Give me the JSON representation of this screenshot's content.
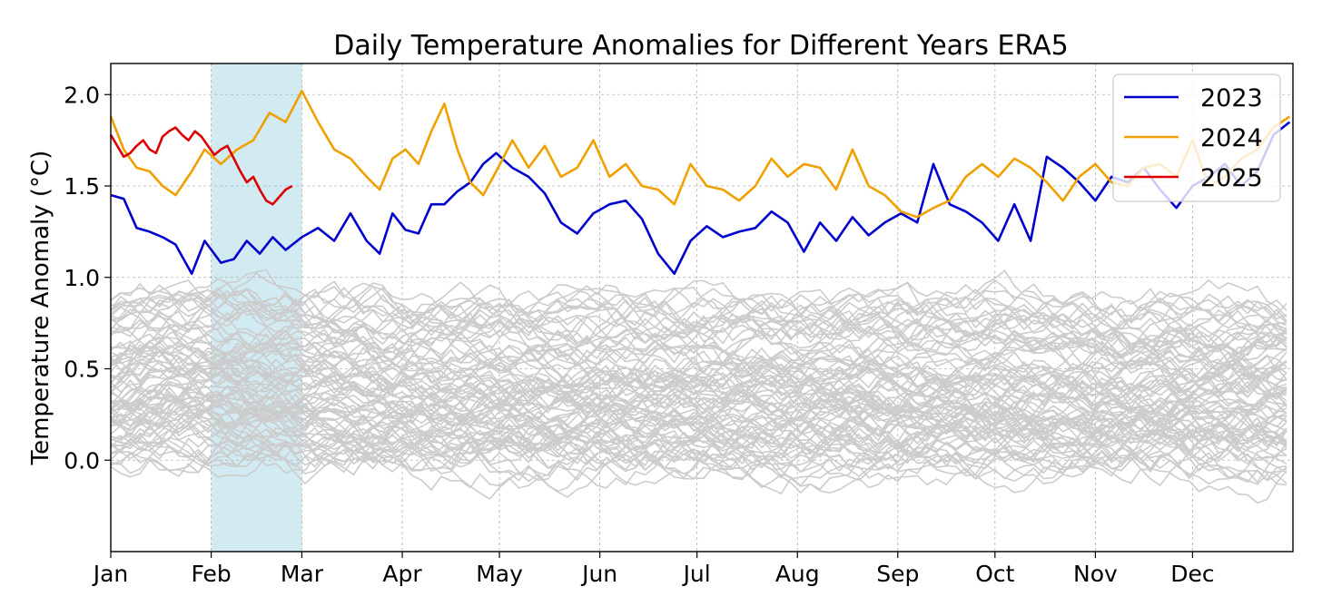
{
  "chart_data": {
    "type": "line",
    "title": "Daily Temperature Anomalies for Different Years ERA5",
    "xlabel": "",
    "ylabel": "Temperature Anomaly (°C)",
    "x_tick_labels": [
      "Jan",
      "Feb",
      "Mar",
      "Apr",
      "May",
      "Jun",
      "Jul",
      "Aug",
      "Sep",
      "Oct",
      "Nov",
      "Dec"
    ],
    "y_ticks": [
      0.0,
      0.5,
      1.0,
      1.5,
      2.0
    ],
    "y_tick_labels": [
      "0.0",
      "0.5",
      "1.0",
      "1.5",
      "2.0"
    ],
    "ylim": [
      -0.5,
      2.17
    ],
    "xlim": [
      1,
      366
    ],
    "grid": true,
    "legend_position": "top-right",
    "highlight_band": {
      "x_start_day": 32,
      "x_end_day": 60,
      "color": "#add8e6"
    },
    "background_series": {
      "description": "earlier years",
      "count": 85,
      "color": "#cccccc",
      "center": 0.4,
      "spread": 0.32
    },
    "colors": {
      "2023": "#0000cd",
      "2024": "#f0a000",
      "2025": "#dd0000",
      "background": "#cccccc"
    },
    "series": [
      {
        "name": "2023",
        "color": "#0000cd",
        "points": [
          [
            1,
            1.45
          ],
          [
            5,
            1.43
          ],
          [
            9,
            1.27
          ],
          [
            13,
            1.25
          ],
          [
            17,
            1.22
          ],
          [
            21,
            1.18
          ],
          [
            26,
            1.02
          ],
          [
            30,
            1.2
          ],
          [
            35,
            1.08
          ],
          [
            39,
            1.1
          ],
          [
            43,
            1.2
          ],
          [
            47,
            1.13
          ],
          [
            51,
            1.22
          ],
          [
            55,
            1.15
          ],
          [
            60,
            1.22
          ],
          [
            65,
            1.27
          ],
          [
            70,
            1.2
          ],
          [
            75,
            1.35
          ],
          [
            80,
            1.2
          ],
          [
            84,
            1.13
          ],
          [
            88,
            1.35
          ],
          [
            92,
            1.26
          ],
          [
            96,
            1.24
          ],
          [
            100,
            1.4
          ],
          [
            104,
            1.4
          ],
          [
            108,
            1.47
          ],
          [
            112,
            1.52
          ],
          [
            116,
            1.62
          ],
          [
            120,
            1.68
          ],
          [
            125,
            1.6
          ],
          [
            130,
            1.55
          ],
          [
            135,
            1.46
          ],
          [
            140,
            1.3
          ],
          [
            145,
            1.24
          ],
          [
            150,
            1.35
          ],
          [
            155,
            1.4
          ],
          [
            160,
            1.42
          ],
          [
            165,
            1.32
          ],
          [
            170,
            1.13
          ],
          [
            175,
            1.02
          ],
          [
            180,
            1.2
          ],
          [
            185,
            1.28
          ],
          [
            190,
            1.22
          ],
          [
            195,
            1.25
          ],
          [
            200,
            1.27
          ],
          [
            205,
            1.36
          ],
          [
            210,
            1.3
          ],
          [
            215,
            1.14
          ],
          [
            220,
            1.3
          ],
          [
            225,
            1.2
          ],
          [
            230,
            1.33
          ],
          [
            235,
            1.23
          ],
          [
            240,
            1.3
          ],
          [
            245,
            1.35
          ],
          [
            250,
            1.3
          ],
          [
            255,
            1.62
          ],
          [
            260,
            1.4
          ],
          [
            265,
            1.36
          ],
          [
            270,
            1.3
          ],
          [
            275,
            1.2
          ],
          [
            280,
            1.4
          ],
          [
            285,
            1.2
          ],
          [
            290,
            1.66
          ],
          [
            295,
            1.6
          ],
          [
            300,
            1.52
          ],
          [
            305,
            1.42
          ],
          [
            310,
            1.55
          ],
          [
            315,
            1.52
          ],
          [
            320,
            1.6
          ],
          [
            325,
            1.48
          ],
          [
            330,
            1.38
          ],
          [
            335,
            1.5
          ],
          [
            340,
            1.55
          ],
          [
            345,
            1.62
          ],
          [
            350,
            1.5
          ],
          [
            355,
            1.58
          ],
          [
            360,
            1.78
          ],
          [
            365,
            1.85
          ]
        ]
      },
      {
        "name": "2024",
        "color": "#f0a000",
        "points": [
          [
            1,
            1.88
          ],
          [
            5,
            1.7
          ],
          [
            9,
            1.6
          ],
          [
            13,
            1.58
          ],
          [
            17,
            1.5
          ],
          [
            21,
            1.45
          ],
          [
            26,
            1.58
          ],
          [
            30,
            1.7
          ],
          [
            35,
            1.62
          ],
          [
            40,
            1.7
          ],
          [
            45,
            1.75
          ],
          [
            50,
            1.9
          ],
          [
            55,
            1.85
          ],
          [
            60,
            2.02
          ],
          [
            65,
            1.85
          ],
          [
            70,
            1.7
          ],
          [
            75,
            1.65
          ],
          [
            80,
            1.55
          ],
          [
            84,
            1.48
          ],
          [
            88,
            1.65
          ],
          [
            92,
            1.7
          ],
          [
            96,
            1.62
          ],
          [
            100,
            1.8
          ],
          [
            104,
            1.95
          ],
          [
            108,
            1.7
          ],
          [
            112,
            1.52
          ],
          [
            116,
            1.45
          ],
          [
            120,
            1.58
          ],
          [
            125,
            1.75
          ],
          [
            130,
            1.6
          ],
          [
            135,
            1.72
          ],
          [
            140,
            1.55
          ],
          [
            145,
            1.6
          ],
          [
            150,
            1.75
          ],
          [
            155,
            1.55
          ],
          [
            160,
            1.62
          ],
          [
            165,
            1.5
          ],
          [
            170,
            1.48
          ],
          [
            175,
            1.4
          ],
          [
            180,
            1.62
          ],
          [
            185,
            1.5
          ],
          [
            190,
            1.48
          ],
          [
            195,
            1.42
          ],
          [
            200,
            1.5
          ],
          [
            205,
            1.65
          ],
          [
            210,
            1.55
          ],
          [
            215,
            1.62
          ],
          [
            220,
            1.6
          ],
          [
            225,
            1.48
          ],
          [
            230,
            1.7
          ],
          [
            235,
            1.5
          ],
          [
            240,
            1.45
          ],
          [
            245,
            1.36
          ],
          [
            250,
            1.33
          ],
          [
            255,
            1.38
          ],
          [
            260,
            1.42
          ],
          [
            265,
            1.55
          ],
          [
            270,
            1.62
          ],
          [
            275,
            1.55
          ],
          [
            280,
            1.65
          ],
          [
            285,
            1.6
          ],
          [
            290,
            1.52
          ],
          [
            295,
            1.42
          ],
          [
            300,
            1.55
          ],
          [
            305,
            1.62
          ],
          [
            310,
            1.52
          ],
          [
            315,
            1.5
          ],
          [
            320,
            1.6
          ],
          [
            325,
            1.62
          ],
          [
            330,
            1.55
          ],
          [
            335,
            1.75
          ],
          [
            340,
            1.5
          ],
          [
            345,
            1.55
          ],
          [
            350,
            1.65
          ],
          [
            355,
            1.7
          ],
          [
            360,
            1.82
          ],
          [
            365,
            1.88
          ]
        ]
      },
      {
        "name": "2025",
        "color": "#dd0000",
        "points": [
          [
            1,
            1.78
          ],
          [
            3,
            1.72
          ],
          [
            5,
            1.66
          ],
          [
            7,
            1.68
          ],
          [
            9,
            1.72
          ],
          [
            11,
            1.75
          ],
          [
            13,
            1.7
          ],
          [
            15,
            1.68
          ],
          [
            17,
            1.77
          ],
          [
            19,
            1.8
          ],
          [
            21,
            1.82
          ],
          [
            23,
            1.78
          ],
          [
            25,
            1.75
          ],
          [
            27,
            1.8
          ],
          [
            29,
            1.77
          ],
          [
            31,
            1.72
          ],
          [
            33,
            1.67
          ],
          [
            35,
            1.7
          ],
          [
            37,
            1.72
          ],
          [
            39,
            1.65
          ],
          [
            41,
            1.58
          ],
          [
            43,
            1.52
          ],
          [
            45,
            1.55
          ],
          [
            47,
            1.48
          ],
          [
            49,
            1.42
          ],
          [
            51,
            1.4
          ],
          [
            53,
            1.44
          ],
          [
            55,
            1.48
          ],
          [
            57,
            1.5
          ]
        ]
      }
    ],
    "legend": [
      "2023",
      "2024",
      "2025"
    ]
  }
}
